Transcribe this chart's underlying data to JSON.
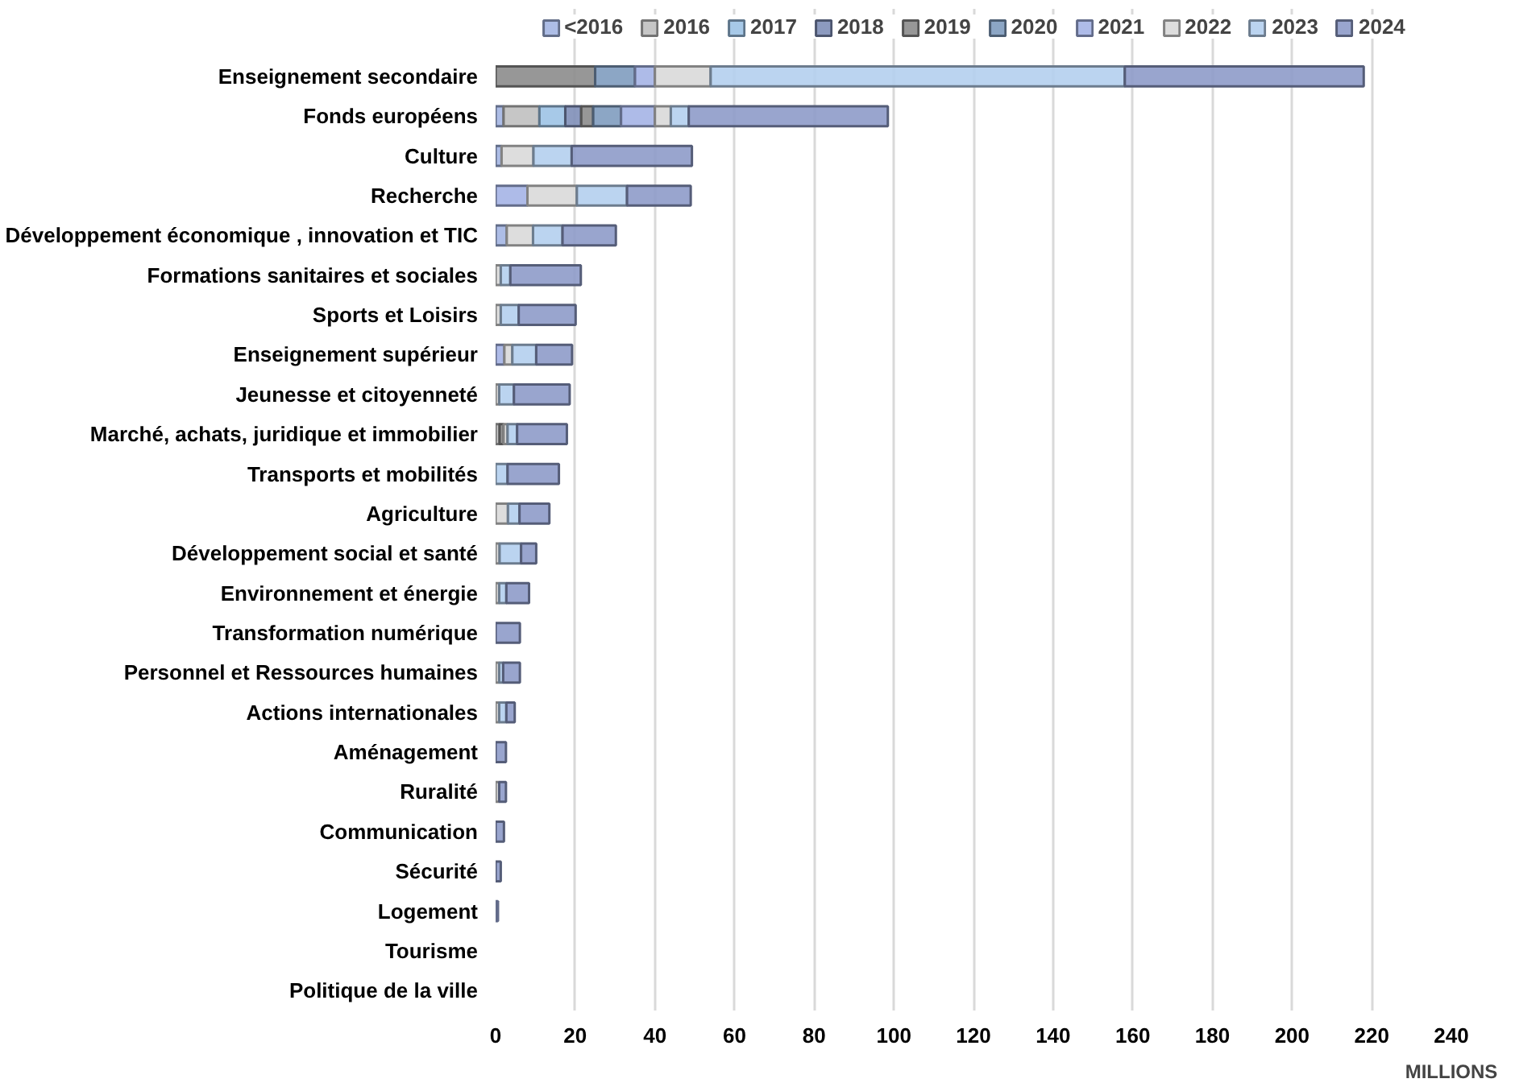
{
  "chart_data": {
    "type": "bar",
    "orientation": "horizontal",
    "stacked": true,
    "xlabel": "MILLIONS",
    "categories": [
      "Enseignement secondaire",
      "Fonds européens",
      "Culture",
      "Recherche",
      "Développement économique , innovation et TIC",
      "Formations sanitaires et sociales",
      "Sports et Loisirs",
      "Enseignement supérieur",
      "Jeunesse et citoyenneté",
      "Marché, achats, juridique et immobilier",
      "Transports et mobilités",
      "Agriculture",
      "Développement social et santé",
      "Environnement et énergie",
      "Transformation numérique",
      "Personnel et Ressources humaines",
      "Actions internationales",
      "Aménagement",
      "Ruralité",
      "Communication",
      "Sécurité",
      "Logement",
      "Tourisme",
      "Politique de la ville"
    ],
    "series": [
      {
        "name": "<2016",
        "color": "#a4b6e3",
        "values": [
          null,
          2,
          1.5,
          null,
          2.8,
          null,
          null,
          null,
          null,
          null,
          null,
          null,
          null,
          null,
          null,
          null,
          null,
          null,
          null,
          null,
          null,
          null,
          null,
          null
        ]
      },
      {
        "name": "2016",
        "color": "#c0c0c0",
        "values": [
          null,
          9,
          null,
          null,
          null,
          null,
          null,
          null,
          null,
          1,
          null,
          null,
          null,
          null,
          null,
          null,
          null,
          null,
          null,
          null,
          null,
          null,
          null,
          null
        ]
      },
      {
        "name": "2017",
        "color": "#9dc3e6",
        "values": [
          null,
          6.5,
          null,
          null,
          null,
          null,
          null,
          null,
          null,
          null,
          null,
          null,
          null,
          null,
          null,
          null,
          null,
          null,
          null,
          null,
          null,
          null,
          null,
          null
        ]
      },
      {
        "name": "2018",
        "color": "#7f8fb8",
        "values": [
          null,
          4,
          null,
          null,
          null,
          null,
          null,
          null,
          null,
          null,
          null,
          null,
          null,
          null,
          null,
          null,
          null,
          null,
          null,
          null,
          null,
          null,
          null,
          null
        ]
      },
      {
        "name": "2019",
        "color": "#8c8c8c",
        "values": [
          25,
          3,
          null,
          null,
          null,
          null,
          null,
          null,
          null,
          1,
          null,
          null,
          null,
          null,
          null,
          null,
          null,
          null,
          null,
          null,
          null,
          null,
          null,
          null
        ]
      },
      {
        "name": "2020",
        "color": "#7f9cbf",
        "values": [
          10,
          7,
          null,
          null,
          null,
          null,
          null,
          null,
          null,
          null,
          null,
          null,
          null,
          null,
          null,
          null,
          null,
          null,
          null,
          null,
          null,
          null,
          null,
          null
        ]
      },
      {
        "name": "2021",
        "color": "#a5b4e6",
        "values": [
          5,
          8.5,
          null,
          8,
          null,
          null,
          null,
          2.2,
          null,
          null,
          null,
          null,
          null,
          null,
          null,
          null,
          null,
          null,
          null,
          null,
          null,
          0.6,
          null,
          null
        ]
      },
      {
        "name": "2022",
        "color": "#d9d9d9",
        "values": [
          14,
          4,
          8,
          12.4,
          6.6,
          1.3,
          1.3,
          2,
          0.9,
          1,
          null,
          3.1,
          1,
          0.9,
          null,
          0.9,
          0.9,
          null,
          0.9,
          null,
          null,
          null,
          null,
          null
        ]
      },
      {
        "name": "2023",
        "color": "#b4cfee",
        "values": [
          104,
          4.5,
          9.6,
          12.6,
          7.4,
          2.4,
          4.5,
          6,
          3.7,
          2.4,
          3,
          2.9,
          5.4,
          1.8,
          null,
          1,
          1.8,
          null,
          null,
          null,
          null,
          null,
          null,
          null
        ]
      },
      {
        "name": "2024",
        "color": "#8e9bc9",
        "values": [
          60,
          50,
          30.2,
          16,
          13.4,
          17.7,
          14.3,
          9,
          14,
          12.5,
          12.9,
          7.5,
          3.8,
          5.7,
          6.1,
          4.2,
          2.1,
          2.6,
          1.7,
          2.1,
          1.3,
          null,
          null,
          null
        ]
      }
    ],
    "xlim": [
      0,
      240
    ],
    "xticks": [
      0,
      20,
      40,
      60,
      80,
      100,
      120,
      140,
      160,
      180,
      200,
      220,
      240
    ],
    "grid": "x",
    "legend": "top"
  }
}
